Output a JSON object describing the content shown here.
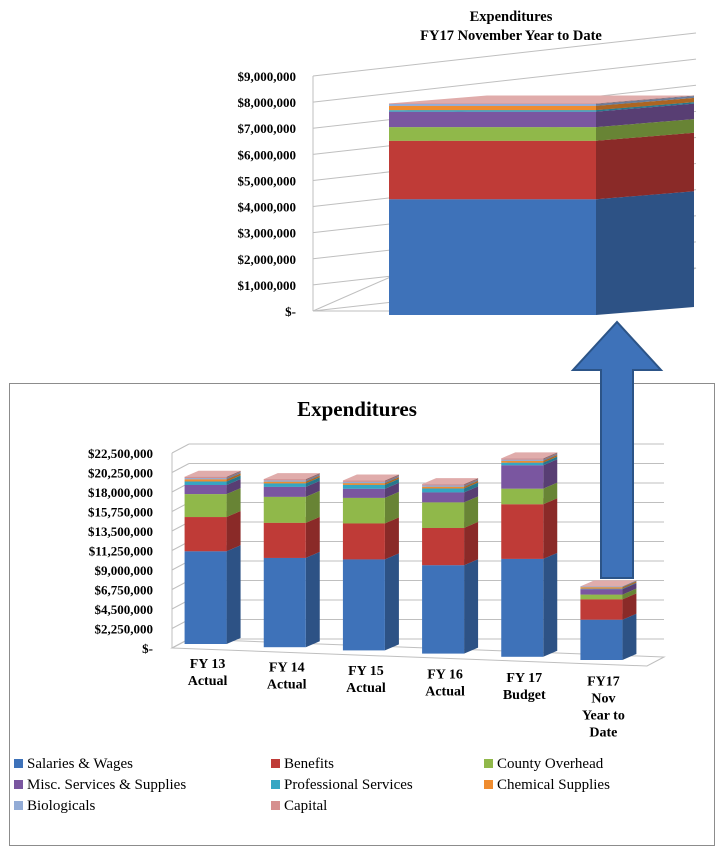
{
  "colors": {
    "salaries": "#3e72b9",
    "benefits": "#bf3b37",
    "overhead": "#90b84a",
    "misc": "#7a56a0",
    "professional": "#35a6c3",
    "chemical": "#ef8c2f",
    "biologicals": "#93acd6",
    "capital": "#d6908f",
    "arrow": "#3e72b9",
    "arrow_edge": "#2c5487"
  },
  "chart_data": [
    {
      "type": "bar",
      "stacked": true,
      "three_d": true,
      "title": "Expenditures\nFY17 November Year to Date",
      "title_lines": [
        "Expenditures",
        "FY17 November Year to Date"
      ],
      "categories": [
        "FY17 November Year to Date"
      ],
      "category_labels_shown": false,
      "ylim": [
        0,
        9000000
      ],
      "ytick_labels": [
        "$-",
        "$1,000,000",
        "$2,000,000",
        "$3,000,000",
        "$4,000,000",
        "$5,000,000",
        "$6,000,000",
        "$7,000,000",
        "$8,000,000",
        "$9,000,000"
      ],
      "series": [
        {
          "name": "Salaries & Wages",
          "values": [
            4650000
          ]
        },
        {
          "name": "Benefits",
          "values": [
            2350000
          ]
        },
        {
          "name": "County Overhead",
          "values": [
            550000
          ]
        },
        {
          "name": "Misc. Services & Supplies",
          "values": [
            620000
          ]
        },
        {
          "name": "Professional Services",
          "values": [
            60000
          ]
        },
        {
          "name": "Chemical Supplies",
          "values": [
            170000
          ]
        },
        {
          "name": "Biologicals",
          "values": [
            80000
          ]
        },
        {
          "name": "Capital",
          "values": [
            20000
          ]
        }
      ]
    },
    {
      "type": "bar",
      "stacked": true,
      "three_d": true,
      "title": "Expenditures",
      "categories": [
        "FY 13 Actual",
        "FY 14 Actual",
        "FY 15 Actual",
        "FY 16 Actual",
        "FY 17 Budget",
        "FY17 Nov Year to Date"
      ],
      "category_lines": [
        [
          "FY 13",
          "Actual"
        ],
        [
          "FY 14",
          "Actual"
        ],
        [
          "FY 15",
          "Actual"
        ],
        [
          "FY 16",
          "Actual"
        ],
        [
          "FY 17",
          "Budget"
        ],
        [
          "FY17",
          "Nov",
          "Year to",
          "Date"
        ]
      ],
      "ylim": [
        0,
        22500000
      ],
      "ytick_labels": [
        "$-",
        "$2,250,000",
        "$4,500,000",
        "$6,750,000",
        "$9,000,000",
        "$11,250,000",
        "$13,500,000",
        "$15,750,000",
        "$18,000,000",
        "$20,250,000",
        "$22,500,000"
      ],
      "legend_position": "bottom",
      "series": [
        {
          "name": "Salaries & Wages",
          "values": [
            10700000,
            10300000,
            10500000,
            10200000,
            11300000,
            4650000
          ]
        },
        {
          "name": "Benefits",
          "values": [
            3950000,
            4050000,
            4150000,
            4300000,
            6300000,
            2350000
          ]
        },
        {
          "name": "County Overhead",
          "values": [
            2650000,
            3000000,
            2950000,
            2950000,
            1800000,
            550000
          ]
        },
        {
          "name": "Misc. Services & Supplies",
          "values": [
            1050000,
            1150000,
            1050000,
            1150000,
            2700000,
            620000
          ]
        },
        {
          "name": "Professional Services",
          "values": [
            400000,
            400000,
            450000,
            450000,
            300000,
            60000
          ]
        },
        {
          "name": "Chemical Supplies",
          "values": [
            250000,
            200000,
            200000,
            200000,
            200000,
            170000
          ]
        },
        {
          "name": "Biologicals",
          "values": [
            150000,
            150000,
            150000,
            150000,
            150000,
            80000
          ]
        },
        {
          "name": "Capital",
          "values": [
            150000,
            150000,
            150000,
            150000,
            150000,
            20000
          ]
        }
      ]
    }
  ],
  "legend": {
    "items": [
      {
        "key": "salaries",
        "label": "Salaries & Wages"
      },
      {
        "key": "benefits",
        "label": "Benefits"
      },
      {
        "key": "overhead",
        "label": "County Overhead"
      },
      {
        "key": "misc",
        "label": "Misc. Services & Supplies"
      },
      {
        "key": "professional",
        "label": "Professional Services"
      },
      {
        "key": "chemical",
        "label": "Chemical Supplies"
      },
      {
        "key": "biologicals",
        "label": "Biologicals"
      },
      {
        "key": "capital",
        "label": "Capital"
      }
    ]
  }
}
